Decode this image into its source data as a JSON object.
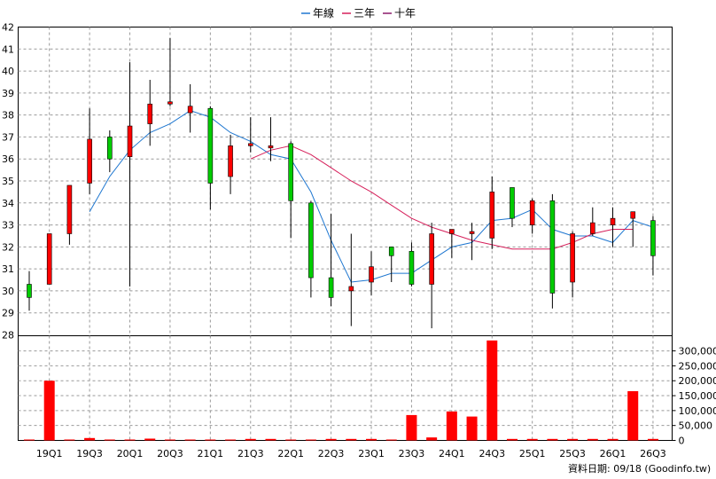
{
  "legend": [
    {
      "label": "年線",
      "color": "#1f77d0"
    },
    {
      "label": "三年",
      "color": "#d61f5a"
    },
    {
      "label": "十年",
      "color": "#8b1a6b"
    }
  ],
  "source_text": "資料日期: 09/18  (Goodinfo.tw)",
  "colors": {
    "up": "#ff0000",
    "down": "#00cc00",
    "volume": "#ff0000",
    "wick": "#000000",
    "grid": "#999999"
  },
  "chart_data": {
    "type": "candlestick",
    "price_axis": {
      "min": 28,
      "max": 42,
      "ticks": [
        28,
        29,
        30,
        31,
        32,
        33,
        34,
        35,
        36,
        37,
        38,
        39,
        40,
        41,
        42
      ]
    },
    "volume_axis": {
      "min": 0,
      "max": 330000,
      "ticks": [
        0,
        50000,
        100000,
        150000,
        200000,
        250000,
        300000
      ],
      "tick_labels": [
        "0",
        "50,000",
        "100,000",
        "150,000",
        "200,000",
        "250,000",
        "300,000"
      ]
    },
    "x_labels": [
      "19Q1",
      "19Q3",
      "20Q1",
      "20Q3",
      "21Q1",
      "21Q3",
      "22Q1",
      "22Q3",
      "23Q1",
      "23Q3",
      "24Q1",
      "24Q3",
      "25Q1",
      "25Q3",
      "26Q1",
      "26Q3"
    ],
    "candles": [
      {
        "o": 30.3,
        "h": 30.9,
        "l": 29.1,
        "c": 29.7,
        "v": 3000
      },
      {
        "o": 30.3,
        "h": 32.6,
        "l": 30.3,
        "c": 32.6,
        "v": 200000
      },
      {
        "o": 32.6,
        "h": 34.8,
        "l": 32.1,
        "c": 34.8,
        "v": 3000
      },
      {
        "o": 34.9,
        "h": 38.3,
        "l": 34.4,
        "c": 36.9,
        "v": 8000
      },
      {
        "o": 37.0,
        "h": 37.3,
        "l": 35.4,
        "c": 36.0,
        "v": 3000
      },
      {
        "o": 36.1,
        "h": 40.4,
        "l": 30.2,
        "c": 37.5,
        "v": 3000
      },
      {
        "o": 37.6,
        "h": 39.6,
        "l": 36.6,
        "c": 38.5,
        "v": 6000
      },
      {
        "o": 38.5,
        "h": 41.5,
        "l": 38.4,
        "c": 38.6,
        "v": 3000
      },
      {
        "o": 38.1,
        "h": 39.4,
        "l": 37.2,
        "c": 38.4,
        "v": 3000
      },
      {
        "o": 38.3,
        "h": 38.4,
        "l": 33.7,
        "c": 34.9,
        "v": 3000
      },
      {
        "o": 35.2,
        "h": 37.1,
        "l": 34.4,
        "c": 36.6,
        "v": 3000
      },
      {
        "o": 36.6,
        "h": 37.9,
        "l": 36.3,
        "c": 36.7,
        "v": 5000
      },
      {
        "o": 36.5,
        "h": 37.9,
        "l": 35.9,
        "c": 36.6,
        "v": 5000
      },
      {
        "o": 36.7,
        "h": 36.8,
        "l": 32.4,
        "c": 34.1,
        "v": 3000
      },
      {
        "o": 34.0,
        "h": 34.1,
        "l": 29.7,
        "c": 30.6,
        "v": 3000
      },
      {
        "o": 30.6,
        "h": 33.5,
        "l": 29.3,
        "c": 29.7,
        "v": 5000
      },
      {
        "o": 30.0,
        "h": 32.6,
        "l": 28.4,
        "c": 30.2,
        "v": 5000
      },
      {
        "o": 30.4,
        "h": 31.8,
        "l": 29.8,
        "c": 31.1,
        "v": 5000
      },
      {
        "o": 32.0,
        "h": 32.0,
        "l": 30.4,
        "c": 31.6,
        "v": 3000
      },
      {
        "o": 31.8,
        "h": 32.2,
        "l": 30.2,
        "c": 30.3,
        "v": 85000
      },
      {
        "o": 30.3,
        "h": 33.1,
        "l": 28.3,
        "c": 32.6,
        "v": 10000
      },
      {
        "o": 32.6,
        "h": 32.8,
        "l": 31.5,
        "c": 32.8,
        "v": 97000
      },
      {
        "o": 32.6,
        "h": 33.1,
        "l": 31.4,
        "c": 32.7,
        "v": 80000
      },
      {
        "o": 32.4,
        "h": 35.2,
        "l": 31.9,
        "c": 34.5,
        "v": 335000
      },
      {
        "o": 34.7,
        "h": 34.7,
        "l": 32.9,
        "c": 33.3,
        "v": 5000
      },
      {
        "o": 33.0,
        "h": 34.2,
        "l": 32.6,
        "c": 34.1,
        "v": 5000
      },
      {
        "o": 34.1,
        "h": 34.4,
        "l": 29.2,
        "c": 29.9,
        "v": 5000
      },
      {
        "o": 30.4,
        "h": 32.7,
        "l": 29.7,
        "c": 32.6,
        "v": 5000
      },
      {
        "o": 32.6,
        "h": 33.8,
        "l": 32.5,
        "c": 33.1,
        "v": 5000
      },
      {
        "o": 33.0,
        "h": 33.8,
        "l": 32.0,
        "c": 33.3,
        "v": 5000
      },
      {
        "o": 33.3,
        "h": 33.6,
        "l": 32.0,
        "c": 33.6,
        "v": 165000
      },
      {
        "o": 33.2,
        "h": 33.4,
        "l": 30.7,
        "c": 31.6,
        "v": 5000
      }
    ],
    "series": [
      {
        "name": "年線",
        "start_index": 3,
        "values": [
          33.6,
          35.2,
          36.4,
          37.2,
          37.6,
          38.2,
          37.9,
          37.2,
          36.8,
          36.2,
          36.0,
          34.5,
          32.3,
          30.4,
          30.5,
          30.8,
          30.8,
          31.4,
          32.0,
          32.2,
          33.2,
          33.3,
          33.7,
          32.8,
          32.5,
          32.5,
          32.2,
          33.2,
          32.9
        ]
      },
      {
        "name": "三年",
        "start_index": 11,
        "values": [
          36.0,
          36.4,
          36.6,
          36.2,
          35.6,
          35.0,
          34.5,
          33.9,
          33.3,
          32.9,
          32.6,
          32.3,
          32.1,
          31.9,
          31.9,
          31.9,
          32.2,
          32.6,
          32.8,
          32.8
        ]
      }
    ]
  }
}
